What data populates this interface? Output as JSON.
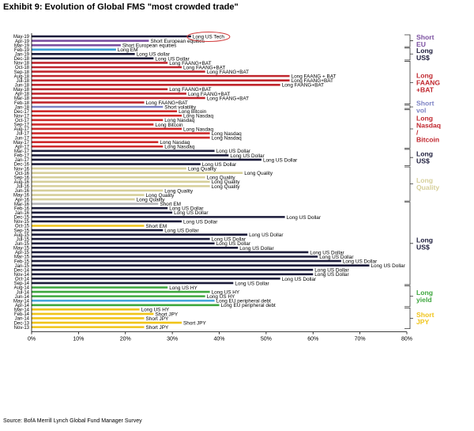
{
  "header": {
    "title": "Exhibit 9: Evolution of Global FMS \"most crowded trade\""
  },
  "footer": {
    "source": "Source: BofA Merrill Lynch Global Fund Manager Survey"
  },
  "colors": {
    "short_eu": "#7b4fa0",
    "long_usd": "#1b1b3a",
    "long_faang": "#c0262d",
    "short_vol": "#7d83c4",
    "long_nasdaq": "#cf2a2a",
    "long_quality": "#d6cf9a",
    "short_em": "#b6b6ba",
    "long_yield": "#3ea73e",
    "long_usd_hy": "#3a9fd6",
    "long_eu_debt": "#45a7dc",
    "short_jpy": "#f0c419",
    "callout_circle": "#d23b3b",
    "bracket": "#333333"
  },
  "chart_data": {
    "type": "bar",
    "orientation": "horizontal",
    "title": "",
    "xlabel": "",
    "ylabel": "",
    "xlim": [
      0,
      80
    ],
    "xticks": [
      "0%",
      "10%",
      "20%",
      "30%",
      "40%",
      "50%",
      "60%",
      "70%",
      "80%"
    ],
    "grid": false,
    "legend": "none",
    "bars": [
      {
        "month": "May-19",
        "value": 34,
        "label": "Long US Tech",
        "group": "long_usd"
      },
      {
        "month": "Apr-19",
        "value": 25,
        "label": "Short European equities",
        "group": "short_eu"
      },
      {
        "month": "Mar-19",
        "value": 19,
        "label": "Short European equities",
        "group": "short_eu"
      },
      {
        "month": "Feb-19",
        "value": 18,
        "label": "Long EM",
        "group": "long_usd_hy"
      },
      {
        "month": "Jan-19",
        "value": 22,
        "label": "Long US dollar",
        "group": "long_usd"
      },
      {
        "month": "Dec-18",
        "value": 26,
        "label": "Long US Dollar",
        "group": "long_usd"
      },
      {
        "month": "Nov-18",
        "value": 29,
        "label": "Long FAANG+BAT",
        "group": "long_faang"
      },
      {
        "month": "Oct-18",
        "value": 32,
        "label": "Long FAANG+BAT",
        "group": "long_faang"
      },
      {
        "month": "Sep-18",
        "value": 37,
        "label": "Long FAANG+BAT",
        "group": "long_faang"
      },
      {
        "month": "Aug-18",
        "value": 55,
        "label": "Long FAANG + BAT",
        "group": "long_faang"
      },
      {
        "month": "Jul-18",
        "value": 55,
        "label": "Long FAANG+BAT",
        "group": "long_faang"
      },
      {
        "month": "Jun-18",
        "value": 53,
        "label": "Long FAANG+BAT",
        "group": "long_faang"
      },
      {
        "month": "May-18",
        "value": 29,
        "label": "Long FAANG+BAT",
        "group": "long_faang"
      },
      {
        "month": "Apr-18",
        "value": 33,
        "label": "Long FAANG+BAT",
        "group": "long_faang"
      },
      {
        "month": "Mar-18",
        "value": 37,
        "label": "Long FAANG+BAT",
        "group": "long_faang"
      },
      {
        "month": "Feb-18",
        "value": 24,
        "label": "Long FAANG+BAT",
        "group": "long_faang"
      },
      {
        "month": "Jan-18",
        "value": 28,
        "label": "Short volatility",
        "group": "short_vol"
      },
      {
        "month": "Dec-17",
        "value": 31,
        "label": "Long Bitcoin",
        "group": "long_nasdaq"
      },
      {
        "month": "Nov-17",
        "value": 32,
        "label": "Long Nasdaq",
        "group": "long_nasdaq"
      },
      {
        "month": "Oct-17",
        "value": 28,
        "label": "Long Nasdaq",
        "group": "long_nasdaq"
      },
      {
        "month": "Sep-17",
        "value": 26,
        "label": "Long Bitcoin",
        "group": "long_nasdaq"
      },
      {
        "month": "Aug-17",
        "value": 32,
        "label": "Long Nasdaq",
        "group": "long_nasdaq"
      },
      {
        "month": "Jul-17",
        "value": 38,
        "label": "Long Nasdaq",
        "group": "long_nasdaq"
      },
      {
        "month": "Jun-17",
        "value": 38,
        "label": "Long Nasdaq",
        "group": "long_nasdaq"
      },
      {
        "month": "May-17",
        "value": 27,
        "label": "Long Nasdaq",
        "group": "long_nasdaq"
      },
      {
        "month": "Apr-17",
        "value": 28,
        "label": "Long Nasdaq",
        "group": "long_nasdaq"
      },
      {
        "month": "Mar-17",
        "value": 39,
        "label": "Long US Dollar",
        "group": "long_usd"
      },
      {
        "month": "Feb-17",
        "value": 42,
        "label": "Long US Dollar",
        "group": "long_usd"
      },
      {
        "month": "Jan-17",
        "value": 49,
        "label": "Long US Dollar",
        "group": "long_usd"
      },
      {
        "month": "Dec-16",
        "value": 36,
        "label": "Long US Dollar",
        "group": "long_usd"
      },
      {
        "month": "Nov-16",
        "value": 33,
        "label": "Long Quality",
        "group": "long_quality"
      },
      {
        "month": "Oct-16",
        "value": 45,
        "label": "Long Quality",
        "group": "long_quality"
      },
      {
        "month": "Sep-16",
        "value": 37,
        "label": "Long Quality",
        "group": "long_quality"
      },
      {
        "month": "Aug-16",
        "value": 38,
        "label": "Long Quality",
        "group": "long_quality"
      },
      {
        "month": "Jul-16",
        "value": 38,
        "label": "Long Quality",
        "group": "long_quality"
      },
      {
        "month": "Jun-16",
        "value": 28,
        "label": "Long Quality",
        "group": "long_quality"
      },
      {
        "month": "May-16",
        "value": 24,
        "label": "Long Quality",
        "group": "long_quality"
      },
      {
        "month": "Apr-16",
        "value": 22,
        "label": "Long Quality",
        "group": "long_quality"
      },
      {
        "month": "Mar-16",
        "value": 27,
        "label": "Short EM",
        "group": "short_em"
      },
      {
        "month": "Feb-16",
        "value": 29,
        "label": "Long US Dollar",
        "group": "long_usd"
      },
      {
        "month": "Jan-16",
        "value": 30,
        "label": "Long US Dollar",
        "group": "long_usd"
      },
      {
        "month": "Dec-15",
        "value": 54,
        "label": "Long US Dollar",
        "group": "long_usd"
      },
      {
        "month": "Nov-15",
        "value": 32,
        "label": "Long US Dollar",
        "group": "long_usd"
      },
      {
        "month": "Oct-15",
        "value": 24,
        "label": "Short EM",
        "group": "short_jpy"
      },
      {
        "month": "Sep-15",
        "value": 28,
        "label": "Long US Dollar",
        "group": "long_usd"
      },
      {
        "month": "Aug-15",
        "value": 46,
        "label": "Long US Dollar",
        "group": "long_usd"
      },
      {
        "month": "Jul-15",
        "value": 38,
        "label": "Long US Dollar",
        "group": "long_usd"
      },
      {
        "month": "Jun-15",
        "value": 39,
        "label": "Long US Dollar",
        "group": "long_usd"
      },
      {
        "month": "May-15",
        "value": 44,
        "label": "Long US Dollar",
        "group": "long_usd"
      },
      {
        "month": "Apr-15",
        "value": 59,
        "label": "Long US Dollar",
        "group": "long_usd"
      },
      {
        "month": "Mar-15",
        "value": 61,
        "label": "Long US Dollar",
        "group": "long_usd"
      },
      {
        "month": "Feb-15",
        "value": 66,
        "label": "Long US Dollar",
        "group": "long_usd"
      },
      {
        "month": "Jan-15",
        "value": 72,
        "label": "Long US Dollar",
        "group": "long_usd"
      },
      {
        "month": "Dec-14",
        "value": 60,
        "label": "Long US Dollar",
        "group": "long_usd"
      },
      {
        "month": "Nov-14",
        "value": 60,
        "label": "Long US Dollar",
        "group": "long_usd"
      },
      {
        "month": "Oct-14",
        "value": 53,
        "label": "Long US Dollar",
        "group": "long_usd"
      },
      {
        "month": "Sep-14",
        "value": 43,
        "label": "Long US Dollar",
        "group": "long_usd"
      },
      {
        "month": "Aug-14",
        "value": 29,
        "label": "Long US HY",
        "group": "long_yield"
      },
      {
        "month": "Jul-14",
        "value": 38,
        "label": "Long US HY",
        "group": "long_yield"
      },
      {
        "month": "Jun-14",
        "value": 37,
        "label": "Long US HY",
        "group": "long_yield"
      },
      {
        "month": "May-14",
        "value": 39,
        "label": "Long EU peripheral debt",
        "group": "long_eu_debt"
      },
      {
        "month": "Apr-14",
        "value": 40,
        "label": "Long EU peripheral debt",
        "group": "long_yield"
      },
      {
        "month": "Mar-14",
        "value": 23,
        "label": "Long US HY",
        "group": "short_jpy"
      },
      {
        "month": "Feb-14",
        "value": 26,
        "label": "Short JPY",
        "group": "short_jpy"
      },
      {
        "month": "Jan-14",
        "value": 24,
        "label": "Short JPY",
        "group": "short_jpy"
      },
      {
        "month": "Dec-13",
        "value": 32,
        "label": "Short JPY",
        "group": "short_jpy"
      },
      {
        "month": "Nov-13",
        "value": 24,
        "label": "Short JPY",
        "group": "short_jpy"
      }
    ],
    "brackets": [
      {
        "label": "Short EU",
        "from": "May-19",
        "to": "Mar-19",
        "color_key": "short_eu"
      },
      {
        "label": "Long US$",
        "from": "Feb-19",
        "to": "Dec-18",
        "color_key": "long_usd"
      },
      {
        "label": "Long FAANG +BAT",
        "from": "Nov-18",
        "to": "Feb-18",
        "color_key": "long_faang"
      },
      {
        "label": "Short vol",
        "from": "Jan-18",
        "to": "Jan-18",
        "color_key": "short_vol"
      },
      {
        "label": "Long Nasdaq / Bitcoin",
        "from": "Dec-17",
        "to": "Apr-17",
        "color_key": "long_faang"
      },
      {
        "label": "Long US$",
        "from": "Mar-17",
        "to": "Dec-16",
        "color_key": "long_usd"
      },
      {
        "label": "Long Quality",
        "from": "Nov-16",
        "to": "Apr-16",
        "color_key": "long_quality"
      },
      {
        "label": "Long US$",
        "from": "Mar-16",
        "to": "Sep-14",
        "color_key": "long_usd"
      },
      {
        "label": "Long yield",
        "from": "Aug-14",
        "to": "Apr-14",
        "color_key": "long_yield"
      },
      {
        "label": "Short JPY",
        "from": "Mar-14",
        "to": "Nov-13",
        "color_key": "short_jpy"
      }
    ]
  }
}
